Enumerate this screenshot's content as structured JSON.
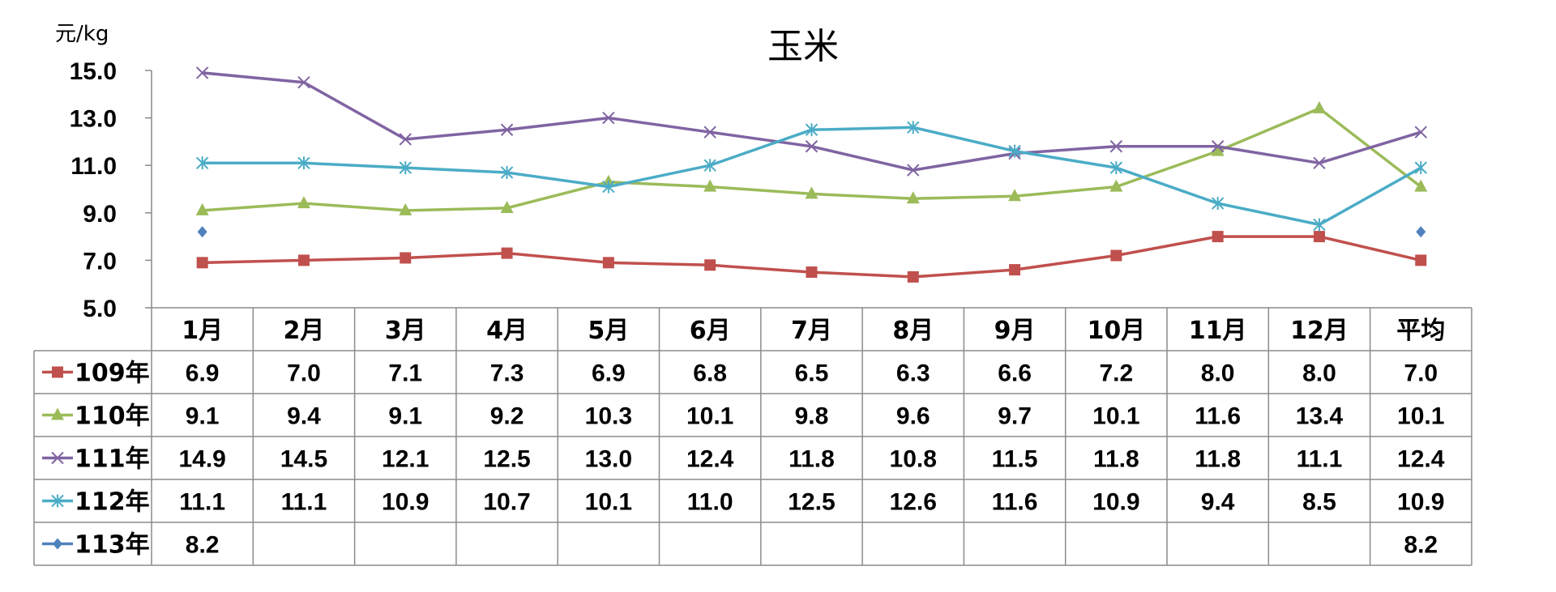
{
  "chart_data": {
    "type": "line",
    "title": "玉米",
    "ylabel": "元/kg",
    "ylim": [
      5.0,
      15.0
    ],
    "yticks": [
      "15.0",
      "13.0",
      "11.0",
      "9.0",
      "7.0",
      "5.0"
    ],
    "categories": [
      "1月",
      "2月",
      "3月",
      "4月",
      "5月",
      "6月",
      "7月",
      "8月",
      "9月",
      "10月",
      "11月",
      "12月",
      "平均"
    ],
    "grid": true,
    "legend": "data-table-left",
    "series": [
      {
        "name": "109年",
        "color": "#c0504d",
        "marker": "square",
        "values": [
          6.9,
          7.0,
          7.1,
          7.3,
          6.9,
          6.8,
          6.5,
          6.3,
          6.6,
          7.2,
          8.0,
          8.0,
          7.0
        ],
        "labels": [
          "6.9",
          "7.0",
          "7.1",
          "7.3",
          "6.9",
          "6.8",
          "6.5",
          "6.3",
          "6.6",
          "7.2",
          "8.0",
          "8.0",
          "7.0"
        ]
      },
      {
        "name": "110年",
        "color": "#9bbb59",
        "marker": "triangle",
        "values": [
          9.1,
          9.4,
          9.1,
          9.2,
          10.3,
          10.1,
          9.8,
          9.6,
          9.7,
          10.1,
          11.6,
          13.4,
          10.1
        ],
        "labels": [
          "9.1",
          "9.4",
          "9.1",
          "9.2",
          "10.3",
          "10.1",
          "9.8",
          "9.6",
          "9.7",
          "10.1",
          "11.6",
          "13.4",
          "10.1"
        ]
      },
      {
        "name": "111年",
        "color": "#8064a2",
        "marker": "x",
        "values": [
          14.9,
          14.5,
          12.1,
          12.5,
          13.0,
          12.4,
          11.8,
          10.8,
          11.5,
          11.8,
          11.8,
          11.1,
          12.4
        ],
        "labels": [
          "14.9",
          "14.5",
          "12.1",
          "12.5",
          "13.0",
          "12.4",
          "11.8",
          "10.8",
          "11.5",
          "11.8",
          "11.8",
          "11.1",
          "12.4"
        ]
      },
      {
        "name": "112年",
        "color": "#4bacc6",
        "marker": "star",
        "values": [
          11.1,
          11.1,
          10.9,
          10.7,
          10.1,
          11.0,
          12.5,
          12.6,
          11.6,
          10.9,
          9.4,
          8.5,
          10.9
        ],
        "labels": [
          "11.1",
          "11.1",
          "10.9",
          "10.7",
          "10.1",
          "11.0",
          "12.5",
          "12.6",
          "11.6",
          "10.9",
          "9.4",
          "8.5",
          "10.9"
        ]
      },
      {
        "name": "113年",
        "color": "#4f81bd",
        "marker": "diamond",
        "values": [
          8.2,
          null,
          null,
          null,
          null,
          null,
          null,
          null,
          null,
          null,
          null,
          null,
          8.2
        ],
        "labels": [
          "8.2",
          "",
          "",
          "",
          "",
          "",
          "",
          "",
          "",
          "",
          "",
          "",
          "8.2"
        ]
      }
    ]
  }
}
